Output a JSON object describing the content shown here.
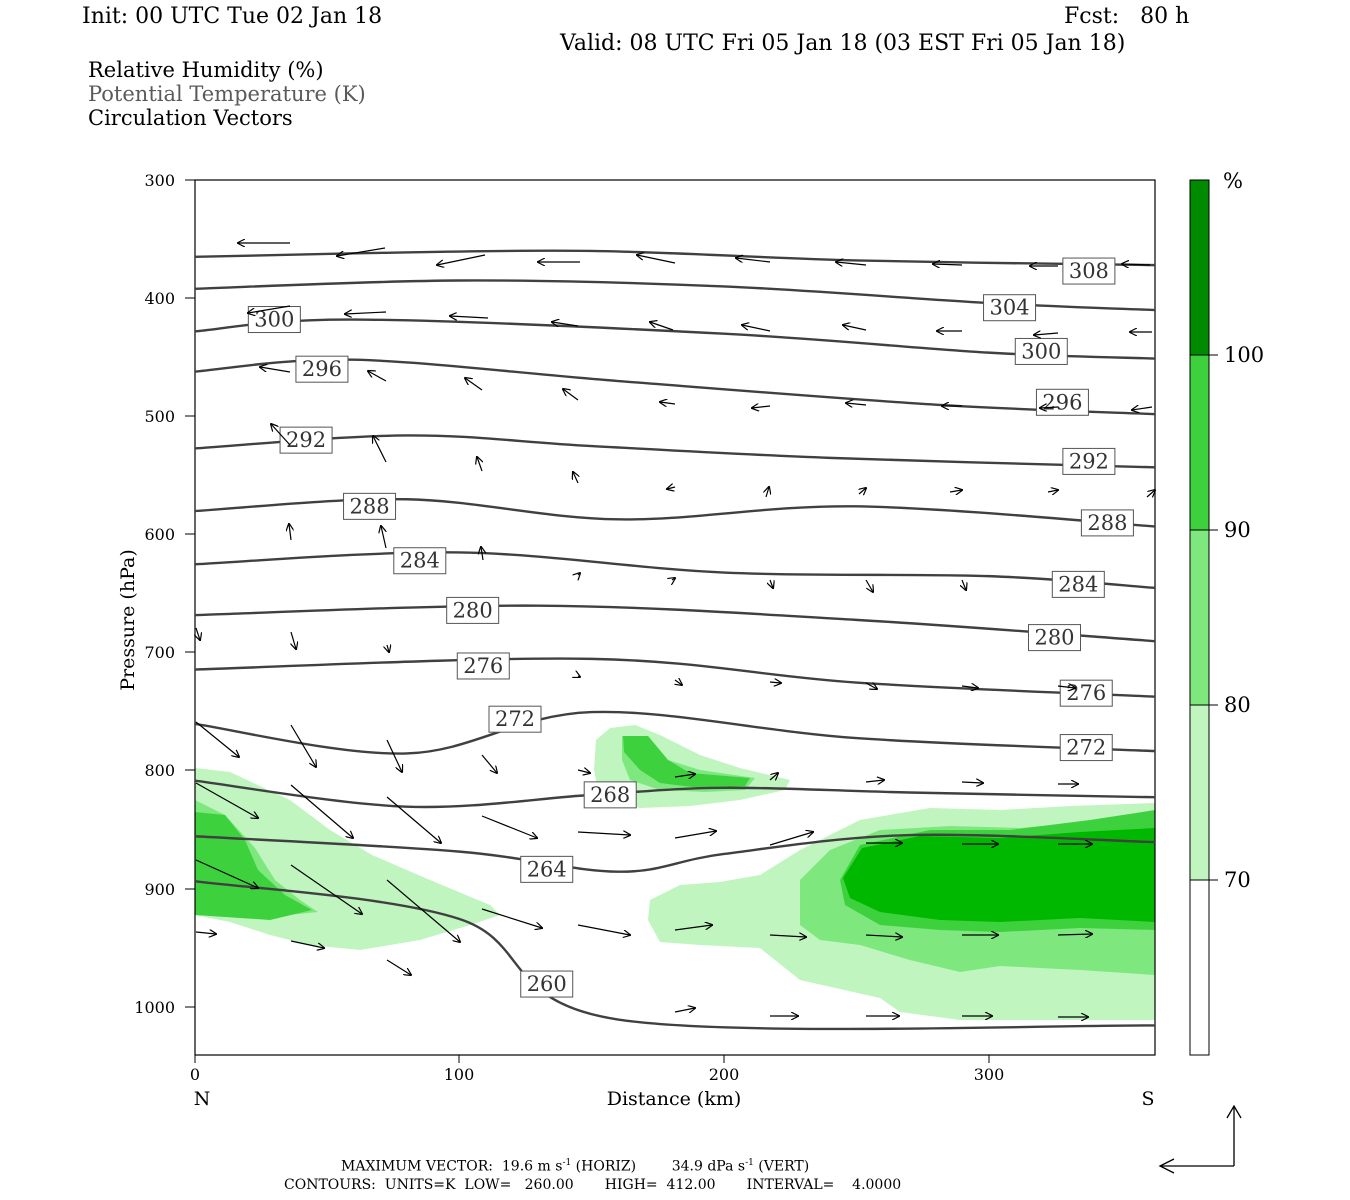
{
  "header": {
    "init": "Init: 00 UTC Tue 02 Jan 18",
    "fcst": "Fcst:   80 h",
    "valid": "Valid: 08 UTC Fri 05 Jan 18 (03 EST Fri 05 Jan 18)"
  },
  "legend": {
    "rh": "Relative Humidity (%)",
    "theta": "Potential Temperature (K)",
    "vectors": "Circulation Vectors"
  },
  "footer": {
    "max_vector_label": "MAXIMUM VECTOR:",
    "max_vector_horiz": "19.6 m s",
    "horiz_tag": "(HORIZ)",
    "max_vector_vert": "34.9 dPa s",
    "vert_tag": "(VERT)",
    "exponent": "-1",
    "contours": "CONTOURS:  UNITS=K  LOW=   260.00       HIGH=  412.00       INTERVAL=    4.0000"
  },
  "colors": {
    "rh70": "#c0f5c0",
    "rh80": "#7ee87e",
    "rh90": "#3dd23d",
    "rh100": "#00b800",
    "rh100plus": "#008a00",
    "contour": "#404040"
  },
  "chart_data": {
    "type": "cross-section",
    "xlabel": "Distance (km)",
    "ylabel": "Pressure (hPa)",
    "xlim": [
      0,
      363
    ],
    "ylim": [
      1040,
      300
    ],
    "x_ticks": [
      "0",
      "100",
      "200",
      "300"
    ],
    "y_ticks": [
      "300",
      "400",
      "500",
      "600",
      "700",
      "800",
      "900",
      "1000"
    ],
    "left_end": "N",
    "right_end": "S",
    "colorbar": {
      "unit": "%",
      "levels": [
        "70",
        "80",
        "90",
        "100"
      ]
    },
    "theta_contours": [
      {
        "label": "308",
        "points": [
          [
            0,
            365
          ],
          [
            60,
            362
          ],
          [
            150,
            360
          ],
          [
            250,
            368
          ],
          [
            363,
            372
          ]
        ],
        "label_at": [
          338,
          377
        ]
      },
      {
        "label": "304",
        "points": [
          [
            0,
            392
          ],
          [
            100,
            385
          ],
          [
            200,
            390
          ],
          [
            300,
            404
          ],
          [
            363,
            410
          ]
        ],
        "label_at": [
          308,
          408
        ]
      },
      {
        "label": "300",
        "points": [
          [
            0,
            428
          ],
          [
            60,
            418
          ],
          [
            200,
            430
          ],
          [
            300,
            446
          ],
          [
            363,
            451
          ]
        ],
        "label_at": [
          30,
          418
        ],
        "label2": "300",
        "label2_at": [
          320,
          445
        ]
      },
      {
        "label": "296",
        "points": [
          [
            0,
            462
          ],
          [
            60,
            452
          ],
          [
            160,
            470
          ],
          [
            280,
            490
          ],
          [
            363,
            498
          ]
        ],
        "label_at": [
          48,
          460
        ],
        "label2": "296",
        "label2_at": [
          328,
          488
        ]
      },
      {
        "label": "292",
        "points": [
          [
            0,
            527
          ],
          [
            80,
            516
          ],
          [
            150,
            525
          ],
          [
            240,
            535
          ],
          [
            363,
            543
          ]
        ],
        "label_at": [
          42,
          520
        ],
        "label2": "292",
        "label2_at": [
          338,
          538
        ]
      },
      {
        "label": "288",
        "points": [
          [
            0,
            580
          ],
          [
            80,
            570
          ],
          [
            160,
            587
          ],
          [
            250,
            576
          ],
          [
            363,
            593
          ]
        ],
        "label_at": [
          66,
          576
        ],
        "label2": "288",
        "label2_at": [
          345,
          590
        ]
      },
      {
        "label": "284",
        "points": [
          [
            0,
            625
          ],
          [
            100,
            615
          ],
          [
            200,
            632
          ],
          [
            300,
            635
          ],
          [
            363,
            645
          ]
        ],
        "label_at": [
          85,
          622
        ],
        "label2": "284",
        "label2_at": [
          334,
          642
        ]
      },
      {
        "label": "280",
        "points": [
          [
            0,
            668
          ],
          [
            130,
            660
          ],
          [
            250,
            672
          ],
          [
            363,
            690
          ]
        ],
        "label_at": [
          105,
          664
        ],
        "label2": "280",
        "label2_at": [
          325,
          687
        ]
      },
      {
        "label": "276",
        "points": [
          [
            0,
            714
          ],
          [
            150,
            705
          ],
          [
            250,
            725
          ],
          [
            363,
            737
          ]
        ],
        "label_at": [
          109,
          711
        ],
        "label2": "276",
        "label2_at": [
          337,
          734
        ]
      },
      {
        "label": "272",
        "points": [
          [
            0,
            760
          ],
          [
            80,
            785
          ],
          [
            150,
            750
          ],
          [
            250,
            772
          ],
          [
            363,
            783
          ]
        ],
        "label_at": [
          121,
          756
        ],
        "label2": "272",
        "label2_at": [
          337,
          780
        ]
      },
      {
        "label": "268",
        "points": [
          [
            0,
            808
          ],
          [
            80,
            830
          ],
          [
            150,
            820
          ],
          [
            200,
            814
          ],
          [
            270,
            818
          ],
          [
            363,
            822
          ]
        ],
        "label_at": [
          157,
          820
        ]
      },
      {
        "label": "264",
        "points": [
          [
            0,
            855
          ],
          [
            100,
            868
          ],
          [
            160,
            885
          ],
          [
            200,
            870
          ],
          [
            270,
            854
          ],
          [
            363,
            860
          ]
        ],
        "label_at": [
          133,
          883
        ]
      },
      {
        "label": "260",
        "points": [
          [
            0,
            893
          ],
          [
            100,
            925
          ],
          [
            160,
            1010
          ],
          [
            363,
            1015
          ]
        ],
        "label_at": [
          133,
          980
        ]
      }
    ]
  }
}
